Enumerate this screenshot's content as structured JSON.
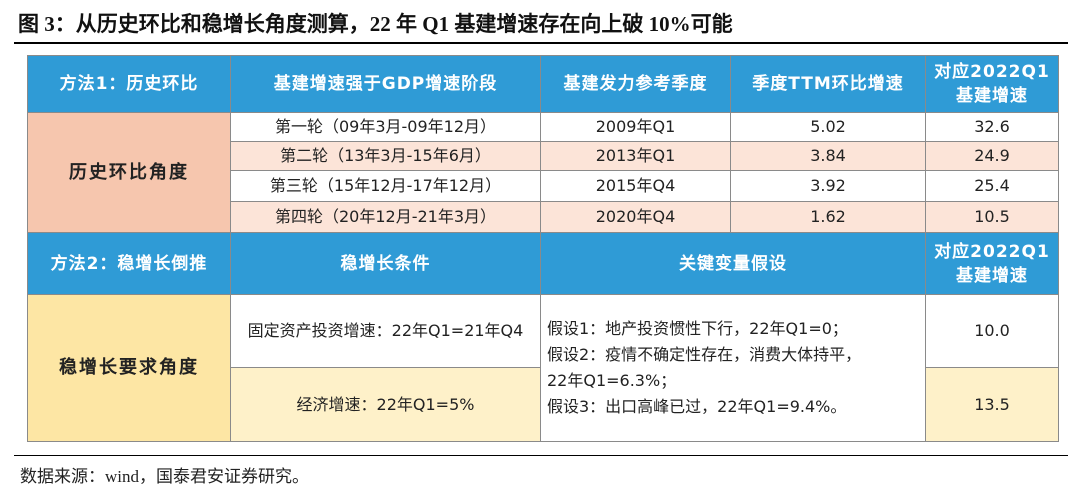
{
  "title": "图 3：从历史环比和稳增长角度测算，22 年 Q1 基建增速存在向上破 10%可能",
  "table": {
    "header1": [
      "方法1：历史环比",
      "基建增速强于GDP增速阶段",
      "基建发力参考季度",
      "季度TTM环比增速",
      "对应2022Q1基建增速"
    ],
    "section1_label": "历史环比角度",
    "rows1": [
      [
        "第一轮（09年3月-09年12月）",
        "2009年Q1",
        "5.02",
        "32.6"
      ],
      [
        "第二轮（13年3月-15年6月）",
        "2013年Q1",
        "3.84",
        "24.9"
      ],
      [
        "第三轮（15年12月-17年12月）",
        "2015年Q4",
        "3.92",
        "25.4"
      ],
      [
        "第四轮（20年12月-21年3月）",
        "2020年Q4",
        "1.62",
        "10.5"
      ]
    ],
    "header2": [
      "方法2：稳增长倒推",
      "稳增长条件",
      "关键变量假设",
      "对应2022Q1基建增速"
    ],
    "section2_label": "稳增长要求角度",
    "conditions": [
      "固定资产投资增速：22年Q1=21年Q4",
      "经济增速：22年Q1=5%"
    ],
    "assumptions": [
      "假设1：地产投资惯性下行，22年Q1=0；",
      "假设2：疫情不确定性存在，消费大体持平，22年Q1=6.3%；",
      "假设3：出口高峰已过，22年Q1=9.4%。"
    ],
    "results": [
      "10.0",
      "13.5"
    ]
  },
  "source": "数据来源：wind，国泰君安证券研究。"
}
